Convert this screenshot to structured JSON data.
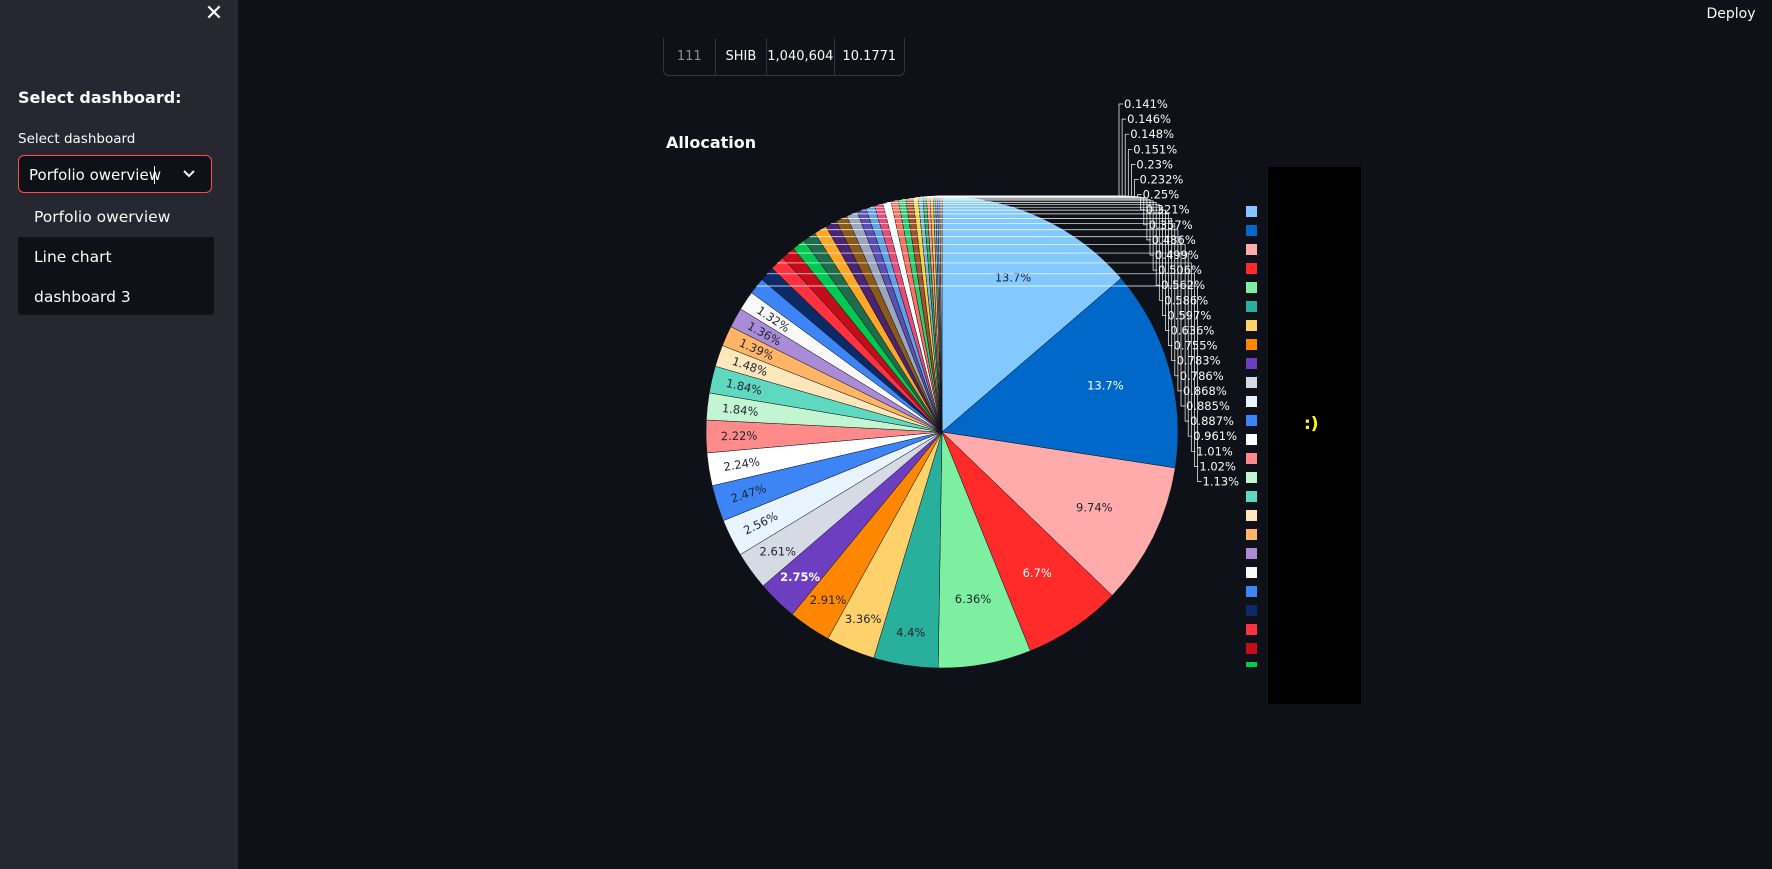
{
  "app": {
    "deploy_label": "Deploy"
  },
  "sidebar": {
    "heading": "Select dashboard:",
    "select_label": "Select dashboard",
    "selected_value": "Porfolio owerview",
    "options": [
      "Porfolio owerview",
      "Line chart",
      "dashboard 3"
    ]
  },
  "table_row": {
    "index": "111",
    "symbol": "SHIB",
    "amount": "1,040,604",
    "value": "10.1771"
  },
  "chart_title": "Allocation",
  "note_text": ":)",
  "chart_data": {
    "type": "pie",
    "title": "Allocation",
    "slices": [
      {
        "label": "13.7%",
        "value": 13.7,
        "color": "#83c9ff"
      },
      {
        "label": "13.7%",
        "value": 13.7,
        "color": "#0068c9"
      },
      {
        "label": "9.74%",
        "value": 9.74,
        "color": "#ffabab"
      },
      {
        "label": "6.7%",
        "value": 6.7,
        "color": "#ff2b2b"
      },
      {
        "label": "6.36%",
        "value": 6.36,
        "color": "#7defa1"
      },
      {
        "label": "4.4%",
        "value": 4.4,
        "color": "#29b09d"
      },
      {
        "label": "3.36%",
        "value": 3.36,
        "color": "#ffd16a"
      },
      {
        "label": "2.91%",
        "value": 2.91,
        "color": "#ff8700"
      },
      {
        "label": "2.75%",
        "value": 2.75,
        "color": "#6d3fc0"
      },
      {
        "label": "2.61%",
        "value": 2.61,
        "color": "#d5dae5"
      },
      {
        "label": "2.56%",
        "value": 2.56,
        "color": "#e8f4ff"
      },
      {
        "label": "2.47%",
        "value": 2.47,
        "color": "#3d85f7"
      },
      {
        "label": "2.24%",
        "value": 2.24,
        "color": "#ffffff"
      },
      {
        "label": "2.22%",
        "value": 2.22,
        "color": "#ff8a8a"
      },
      {
        "label": "1.84%",
        "value": 1.84,
        "color": "#c3f5d3"
      },
      {
        "label": "1.84%",
        "value": 1.84,
        "color": "#5fd8c0"
      },
      {
        "label": "1.48%",
        "value": 1.48,
        "color": "#ffe7bc"
      },
      {
        "label": "1.39%",
        "value": 1.39,
        "color": "#ffb565"
      },
      {
        "label": "1.36%",
        "value": 1.36,
        "color": "#a98bd8"
      },
      {
        "label": "1.32%",
        "value": 1.32,
        "color": "#f9f9f9"
      },
      {
        "label": "1.13%",
        "value": 1.13,
        "color": "#3d85f7"
      },
      {
        "label": "1.02%",
        "value": 1.02,
        "color": "#0b2a66"
      },
      {
        "label": "1.01%",
        "value": 1.01,
        "color": "#ff3340"
      },
      {
        "label": "0.961%",
        "value": 0.961,
        "color": "#c40d1b"
      },
      {
        "label": "0.887%",
        "value": 0.887,
        "color": "#00c853"
      },
      {
        "label": "0.885%",
        "value": 0.885,
        "color": "#1d6d4c"
      },
      {
        "label": "0.868%",
        "value": 0.868,
        "color": "#ffa726"
      },
      {
        "label": "0.786%",
        "value": 0.786,
        "color": "#4a2373"
      },
      {
        "label": "0.783%",
        "value": 0.783,
        "color": "#8a5a1a"
      },
      {
        "label": "0.755%",
        "value": 0.755,
        "color": "#9ba7bd"
      },
      {
        "label": "0.636%",
        "value": 0.636,
        "color": "#5a4fb3"
      },
      {
        "label": "0.597%",
        "value": 0.597,
        "color": "#5fa0e6"
      },
      {
        "label": "0.586%",
        "value": 0.586,
        "color": "#e84a7a"
      },
      {
        "label": "0.562%",
        "value": 0.562,
        "color": "#ffffff"
      },
      {
        "label": "0.506%",
        "value": 0.506,
        "color": "#ff6f61"
      },
      {
        "label": "0.499%",
        "value": 0.499,
        "color": "#2ecc71"
      },
      {
        "label": "0.486%",
        "value": 0.486,
        "color": "#a0522d"
      },
      {
        "label": "0.357%",
        "value": 0.357,
        "color": "#f4d03f"
      },
      {
        "label": "0.321%",
        "value": 0.321,
        "color": "#7fb3d5"
      },
      {
        "label": "0.25%",
        "value": 0.25,
        "color": "#27ae60"
      },
      {
        "label": "0.232%",
        "value": 0.232,
        "color": "#ff8a80"
      },
      {
        "label": "0.23%",
        "value": 0.23,
        "color": "#f5b041"
      },
      {
        "label": "0.151%",
        "value": 0.151,
        "color": "#48c9b0"
      },
      {
        "label": "0.148%",
        "value": 0.148,
        "color": "#af7ac5"
      },
      {
        "label": "0.146%",
        "value": 0.146,
        "color": "#5dade2"
      },
      {
        "label": "0.141%",
        "value": 0.141,
        "color": "#f0b27a"
      }
    ],
    "legend_colors": [
      "#83c9ff",
      "#0068c9",
      "#ffabab",
      "#ff2b2b",
      "#7defa1",
      "#29b09d",
      "#ffd16a",
      "#ff8700",
      "#6d3fc0",
      "#d5dae5",
      "#e8f4ff",
      "#3d85f7",
      "#ffffff",
      "#ff8a8a",
      "#c3f5d3",
      "#5fd8c0",
      "#ffe7bc",
      "#ffb565",
      "#a98bd8",
      "#f9f9f9",
      "#3d85f7",
      "#0b2a66",
      "#ff3340",
      "#c40d1b",
      "#00c853"
    ],
    "legend_placement": "right"
  }
}
